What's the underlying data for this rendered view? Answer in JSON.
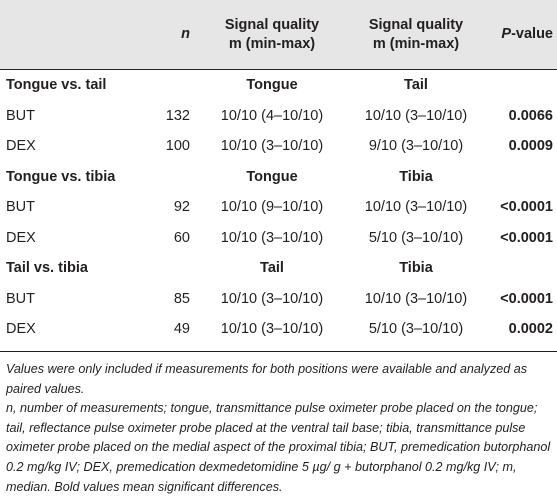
{
  "header": {
    "n": "n",
    "col2_line1": "Signal quality",
    "col2_line2": "m (min-max)",
    "col3_line1": "Signal quality",
    "col3_line2": "m (min-max)",
    "pvalue_italic": "P",
    "pvalue_rest": "-value"
  },
  "groups": [
    {
      "title": "Tongue vs. tail",
      "col2": "Tongue",
      "col3": "Tail",
      "rows": [
        {
          "label": "BUT",
          "n": "132",
          "q1": "10/10 (4–10/10)",
          "q2": "10/10 (3–10/10)",
          "p": "0.0066"
        },
        {
          "label": "DEX",
          "n": "100",
          "q1": "10/10 (3–10/10)",
          "q2": "9/10 (3–10/10)",
          "p": "0.0009"
        }
      ]
    },
    {
      "title": "Tongue vs. tibia",
      "col2": "Tongue",
      "col3": "Tibia",
      "rows": [
        {
          "label": "BUT",
          "n": "92",
          "q1": "10/10 (9–10/10)",
          "q2": "10/10 (3–10/10)",
          "p": "<0.0001"
        },
        {
          "label": "DEX",
          "n": "60",
          "q1": "10/10 (3–10/10)",
          "q2": "5/10 (3–10/10)",
          "p": "<0.0001"
        }
      ]
    },
    {
      "title": "Tail vs. tibia",
      "col2": "Tail",
      "col3": "Tibia",
      "rows": [
        {
          "label": "BUT",
          "n": "85",
          "q1": "10/10 (3–10/10)",
          "q2": "10/10 (3–10/10)",
          "p": "<0.0001"
        },
        {
          "label": "DEX",
          "n": "49",
          "q1": "10/10 (3–10/10)",
          "q2": "5/10 (3–10/10)",
          "p": "0.0002"
        }
      ]
    }
  ],
  "notes": {
    "paragraph1": "Values were only included if measurements for both positions were available and analyzed as paired values.",
    "paragraph2": "n, number of measurements; tongue, transmittance pulse oximeter probe placed on the tongue; tail, reflectance pulse oximeter probe placed at the ventral tail base; tibia, transmittance pulse oximeter probe placed on the medial aspect of the proximal tibia; BUT, premedication butorphanol 0.2 mg/kg IV; DEX, premedication dexmedetomidine 5 µg/ g + butorphanol 0.2 mg/kg IV; m, median. Bold values mean significant differences."
  }
}
